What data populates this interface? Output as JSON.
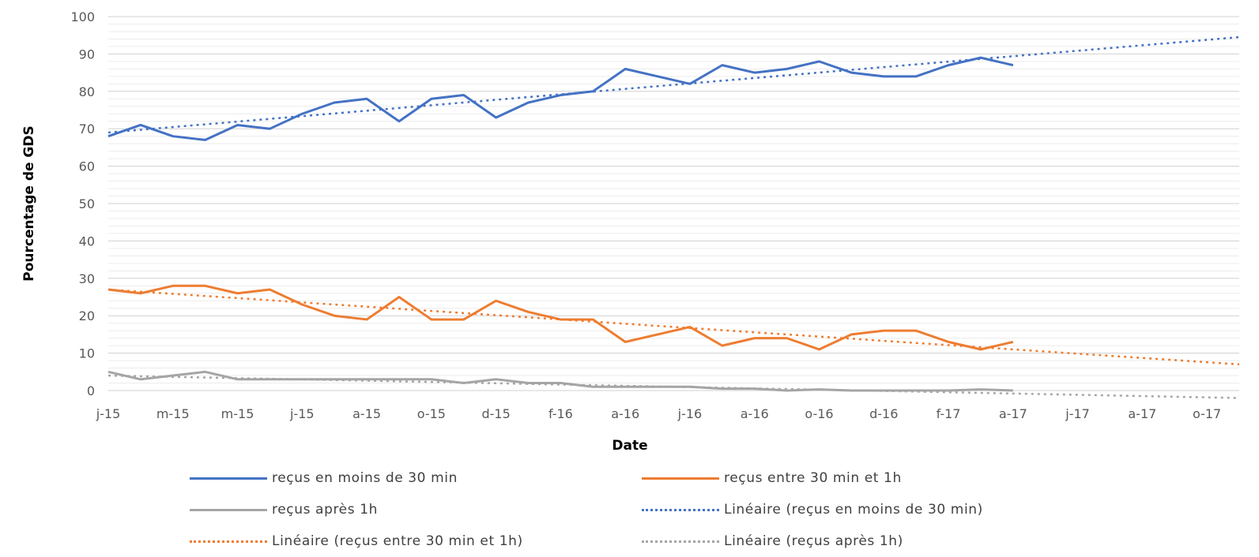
{
  "chart_data": {
    "type": "line",
    "xlabel": "Date",
    "ylabel": "Pourcentage de GDS",
    "ylim": [
      0,
      100
    ],
    "yticks": [
      0,
      10,
      20,
      30,
      40,
      50,
      60,
      70,
      80,
      90,
      100
    ],
    "x_tick_labels": [
      "j-15",
      "m-15",
      "m-15",
      "j-15",
      "a-15",
      "o-15",
      "d-15",
      "f-16",
      "a-16",
      "j-16",
      "a-16",
      "o-16",
      "d-16",
      "f-17",
      "a-17",
      "j-17",
      "a-17",
      "o-17"
    ],
    "grid": "horizontal",
    "legend_position": "bottom",
    "x_dates": [
      "2015-01",
      "2015-02",
      "2015-03",
      "2015-04",
      "2015-05",
      "2015-06",
      "2015-07",
      "2015-08",
      "2015-09",
      "2015-10",
      "2015-11",
      "2015-12",
      "2016-01",
      "2016-02",
      "2016-03",
      "2016-04",
      "2016-05",
      "2016-06",
      "2016-07",
      "2016-08",
      "2016-09",
      "2016-10",
      "2016-11",
      "2016-12",
      "2017-01",
      "2017-02",
      "2017-03",
      "2017-04",
      "2017-05"
    ],
    "series": [
      {
        "name": "reçus en moins de 30 min",
        "color": "#4472C4",
        "style": "solid",
        "values": [
          68,
          71,
          68,
          67,
          71,
          70,
          74,
          77,
          78,
          72,
          78,
          79,
          73,
          77,
          79,
          80,
          86,
          84,
          82,
          87,
          85,
          86,
          88,
          85,
          84,
          84,
          87,
          89,
          87
        ]
      },
      {
        "name": "reçus entre 30 min et 1h",
        "color": "#ED7D31",
        "style": "solid",
        "values": [
          27,
          26,
          28,
          28,
          26,
          27,
          23,
          20,
          19,
          25,
          19,
          19,
          24,
          21,
          19,
          19,
          13,
          15,
          17,
          12,
          14,
          14,
          11,
          15,
          16,
          16,
          13,
          11,
          13
        ]
      },
      {
        "name": "reçus après 1h",
        "color": "#A5A5A5",
        "style": "solid",
        "values": [
          5,
          3,
          4,
          5,
          3,
          3,
          3,
          3,
          3,
          3,
          3,
          2,
          3,
          2,
          2,
          1,
          1,
          1,
          1,
          0.5,
          0.5,
          0,
          0.3,
          0,
          0,
          0,
          0,
          0.3,
          0
        ]
      },
      {
        "name": "Linéaire (reçus en moins de 30 min)",
        "color": "#4472C4",
        "style": "dotted",
        "trend": {
          "start": 69,
          "end_at_axis_edge": 94.5
        }
      },
      {
        "name": "Linéaire (reçus entre 30 min et 1h)",
        "color": "#ED7D31",
        "style": "dotted",
        "trend": {
          "start": 27,
          "end_at_axis_edge": 7
        }
      },
      {
        "name": "Linéaire (reçus après 1h)",
        "color": "#A5A5A5",
        "style": "dotted",
        "trend": {
          "start": 4,
          "end_at_axis_edge": -2
        }
      }
    ]
  }
}
